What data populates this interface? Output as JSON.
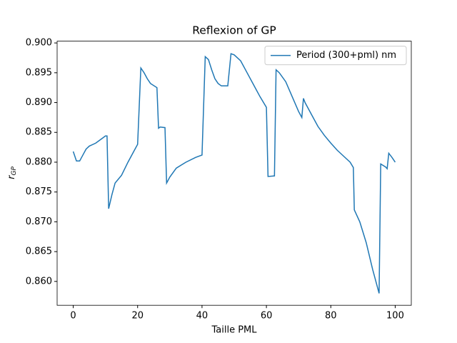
{
  "chart_data": {
    "type": "line",
    "title": "Reflexion of GP",
    "xlabel": "Taille PML",
    "ylabel": "r",
    "ylabel_sub": "GP",
    "legend": "upper right",
    "grid": false,
    "x": [
      0,
      1,
      2,
      3,
      4,
      5,
      7,
      9,
      10,
      10.5,
      11,
      12,
      13,
      15,
      17,
      19,
      20,
      21,
      22,
      23,
      24,
      26,
      26.5,
      27,
      28.5,
      29,
      30,
      32,
      35,
      38,
      40,
      41,
      42,
      43,
      44,
      45,
      46,
      48,
      49,
      50,
      52,
      54,
      56,
      58,
      60,
      60.5,
      62.5,
      63,
      64,
      66,
      68,
      70,
      71,
      71.5,
      72,
      74,
      76,
      78,
      80,
      82,
      84,
      86,
      87,
      87.3,
      89,
      91,
      93,
      95,
      95.5,
      97,
      97.5,
      98,
      99,
      100
    ],
    "series": [
      {
        "name": "Period (300+pml) nm",
        "color": "#1f77b4",
        "values": [
          0.8818,
          0.8802,
          0.8802,
          0.8812,
          0.8822,
          0.8827,
          0.8832,
          0.884,
          0.8844,
          0.8844,
          0.8722,
          0.8745,
          0.8765,
          0.8778,
          0.88,
          0.882,
          0.883,
          0.8958,
          0.895,
          0.894,
          0.8932,
          0.8925,
          0.8857,
          0.8859,
          0.8858,
          0.8765,
          0.8775,
          0.879,
          0.88,
          0.8808,
          0.8812,
          0.8977,
          0.8972,
          0.8955,
          0.894,
          0.8932,
          0.8928,
          0.8928,
          0.8982,
          0.898,
          0.897,
          0.895,
          0.893,
          0.891,
          0.8892,
          0.8776,
          0.8777,
          0.8955,
          0.895,
          0.8935,
          0.891,
          0.8885,
          0.8875,
          0.8907,
          0.89,
          0.888,
          0.886,
          0.8845,
          0.8832,
          0.882,
          0.881,
          0.88,
          0.8791,
          0.872,
          0.87,
          0.8665,
          0.862,
          0.858,
          0.8797,
          0.8792,
          0.8789,
          0.8815,
          0.8808,
          0.88
        ]
      }
    ],
    "xlim": [
      -5,
      105
    ],
    "xticks": [
      0,
      20,
      40,
      60,
      80,
      100
    ],
    "ylim": [
      0.856,
      0.9003
    ],
    "yticks": [
      {
        "value": 0.86,
        "label": "0.860"
      },
      {
        "value": 0.865,
        "label": "0.865"
      },
      {
        "value": 0.87,
        "label": "0.870"
      },
      {
        "value": 0.875,
        "label": "0.875"
      },
      {
        "value": 0.88,
        "label": "0.880"
      },
      {
        "value": 0.885,
        "label": "0.885"
      },
      {
        "value": 0.89,
        "label": "0.890"
      },
      {
        "value": 0.895,
        "label": "0.895"
      },
      {
        "value": 0.9,
        "label": "0.900"
      }
    ]
  }
}
